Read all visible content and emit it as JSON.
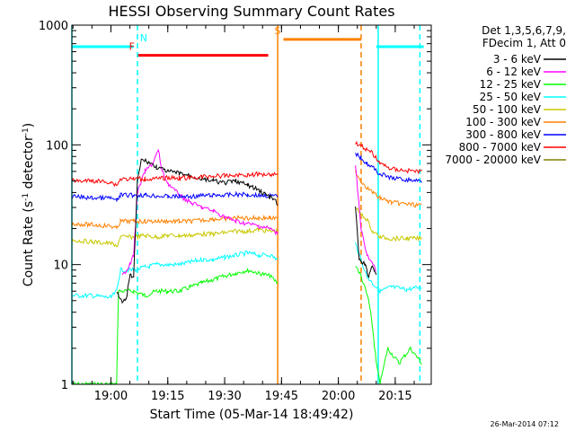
{
  "chart_data": {
    "type": "line",
    "title": "HESSI Observing Summary Count Rates",
    "xlabel": "Start Time (05-Mar-14 18:49:42)",
    "ylabel": "Count Rate (s",
    "ylabel_sup": "-1",
    "ylabel_tail": " detector",
    "ylabel_close": ")",
    "xlim": [
      "18:49:42",
      "20:24:30"
    ],
    "ylim": [
      1,
      1000
    ],
    "yscale": "log",
    "x_ticks": [
      "19:00",
      "19:15",
      "19:30",
      "19:45",
      "20:00",
      "20:15"
    ],
    "y_ticks": [
      "1",
      "10",
      "100",
      "1000"
    ],
    "legend_header": [
      "Det 1,3,5,6,7,9,",
      "FDecim 1, Att 0"
    ],
    "footer": "26-Mar-2014 07:12",
    "flags": [
      {
        "label": "N",
        "color": "#00ffff",
        "segments": [
          [
            "18:49:42",
            "19:06:00"
          ],
          [
            "20:10:00",
            "20:22:30"
          ]
        ],
        "level": 660
      },
      {
        "label": "F",
        "color": "#ff0000",
        "segments": [
          [
            "19:07:00",
            "19:41:30"
          ]
        ],
        "level": 560
      },
      {
        "label": "S",
        "color": "#ff8000",
        "segments": [
          [
            "19:45:30",
            "20:06:00"
          ]
        ],
        "level": 760
      }
    ],
    "vlines": [
      {
        "x": "18:49:42",
        "color": "#00ffff",
        "style": "solid"
      },
      {
        "x": "19:07:00",
        "color": "#00ffff",
        "style": "dashed"
      },
      {
        "x": "19:44:00",
        "color": "#ff8000",
        "style": "solid"
      },
      {
        "x": "20:06:00",
        "color": "#ff8000",
        "style": "dashed"
      },
      {
        "x": "20:10:30",
        "color": "#00ffff",
        "style": "solid"
      },
      {
        "x": "20:21:30",
        "color": "#00ffff",
        "style": "dashed"
      }
    ],
    "series": [
      {
        "name": "3 - 6 keV",
        "color": "#000000",
        "points": [
          [
            "19:01:30",
            6
          ],
          [
            "19:03:00",
            5
          ],
          [
            "19:04:00",
            5
          ],
          [
            "19:05:00",
            8
          ],
          [
            "19:06:00",
            8
          ],
          [
            "19:07:00",
            50
          ],
          [
            "19:08:00",
            75
          ],
          [
            "19:10:00",
            72
          ],
          [
            "19:12:00",
            65
          ],
          [
            "19:15:00",
            60
          ],
          [
            "19:18:00",
            58
          ],
          [
            "19:21:00",
            55
          ],
          [
            "19:24:00",
            52
          ],
          [
            "19:27:00",
            50
          ],
          [
            "19:30:00",
            48
          ],
          [
            "19:33:00",
            50
          ],
          [
            "19:36:00",
            46
          ],
          [
            "19:39:00",
            42
          ],
          [
            "19:41:00",
            38
          ],
          [
            "19:43:00",
            35
          ],
          [
            "19:44:00",
            32
          ],
          null,
          [
            "20:04:30",
            30
          ],
          [
            "20:05:30",
            11
          ],
          [
            "20:07:00",
            10
          ],
          [
            "20:08:00",
            8
          ],
          [
            "20:09:00",
            10
          ],
          [
            "20:10:00",
            8
          ]
        ]
      },
      {
        "name": "6 - 12 keV",
        "color": "#ff00ff",
        "points": [
          [
            "19:03:00",
            8
          ],
          [
            "19:04:00",
            9
          ],
          [
            "19:05:00",
            10
          ],
          [
            "19:06:00",
            12
          ],
          [
            "19:07:00",
            40
          ],
          [
            "19:09:00",
            60
          ],
          [
            "19:11:00",
            70
          ],
          [
            "19:12:30",
            90
          ],
          [
            "19:13:30",
            60
          ],
          [
            "19:15:00",
            48
          ],
          [
            "19:18:00",
            38
          ],
          [
            "19:21:00",
            33
          ],
          [
            "19:24:00",
            30
          ],
          [
            "19:27:00",
            28
          ],
          [
            "19:30:00",
            25
          ],
          [
            "19:33:00",
            23
          ],
          [
            "19:36:00",
            22
          ],
          [
            "19:39:00",
            21
          ],
          [
            "19:42:00",
            20
          ],
          [
            "19:44:00",
            18
          ],
          null,
          [
            "20:04:30",
            70
          ],
          [
            "20:06:00",
            20
          ],
          [
            "20:07:30",
            12
          ],
          [
            "20:09:00",
            10
          ],
          [
            "20:10:00",
            9
          ]
        ]
      },
      {
        "name": "12 - 25 keV",
        "color": "#00ff00",
        "points": [
          [
            "18:49:42",
            1
          ],
          [
            "19:00:00",
            1
          ],
          [
            "19:01:30",
            1
          ],
          [
            "19:02:00",
            6
          ],
          [
            "19:06:00",
            6
          ],
          [
            "19:09:00",
            5.5
          ],
          [
            "19:12:00",
            6
          ],
          [
            "19:15:00",
            6
          ],
          [
            "19:18:00",
            6
          ],
          [
            "19:21:00",
            6.5
          ],
          [
            "19:24:00",
            7
          ],
          [
            "19:27:00",
            7.5
          ],
          [
            "19:30:00",
            8
          ],
          [
            "19:33:00",
            8.5
          ],
          [
            "19:36:00",
            9
          ],
          [
            "19:39:00",
            8.5
          ],
          [
            "19:42:00",
            8
          ],
          [
            "19:44:00",
            7
          ],
          null,
          [
            "20:04:30",
            10
          ],
          [
            "20:06:00",
            8
          ],
          [
            "20:08:00",
            5
          ],
          [
            "20:09:00",
            3
          ],
          [
            "20:10:00",
            1.5
          ],
          [
            "20:11:00",
            1
          ],
          [
            "20:13:00",
            2
          ],
          [
            "20:16:00",
            1.5
          ],
          [
            "20:19:00",
            2
          ],
          [
            "20:22:00",
            1.5
          ]
        ]
      },
      {
        "name": "25 - 50 keV",
        "color": "#00ffff",
        "points": [
          [
            "18:49:42",
            5.5
          ],
          [
            "18:55:00",
            5.5
          ],
          [
            "19:00:00",
            5.3
          ],
          [
            "19:01:30",
            6
          ],
          [
            "19:02:30",
            9
          ],
          [
            "19:06:00",
            9
          ],
          [
            "19:09:00",
            9.5
          ],
          [
            "19:12:00",
            10
          ],
          [
            "19:15:00",
            10
          ],
          [
            "19:18:00",
            10
          ],
          [
            "19:21:00",
            10.5
          ],
          [
            "19:24:00",
            11
          ],
          [
            "19:27:00",
            11
          ],
          [
            "19:30:00",
            11.5
          ],
          [
            "19:33:00",
            12
          ],
          [
            "19:36:00",
            12.5
          ],
          [
            "19:39:00",
            12
          ],
          [
            "19:42:00",
            12
          ],
          [
            "19:44:00",
            11
          ],
          null,
          [
            "20:04:30",
            15
          ],
          [
            "20:06:00",
            11
          ],
          [
            "20:07:30",
            8
          ],
          [
            "20:09:00",
            7
          ],
          [
            "20:11:00",
            6
          ],
          [
            "20:14:00",
            6.5
          ],
          [
            "20:18:00",
            6.2
          ],
          [
            "20:22:00",
            6.5
          ]
        ]
      },
      {
        "name": "50 - 100 keV",
        "color": "#c8c800",
        "points": [
          [
            "18:49:42",
            16
          ],
          [
            "18:55:00",
            15.5
          ],
          [
            "19:00:00",
            15
          ],
          [
            "19:01:30",
            14
          ],
          [
            "19:02:30",
            17
          ],
          [
            "19:06:00",
            17
          ],
          [
            "19:09:00",
            17.5
          ],
          [
            "19:12:00",
            17
          ],
          [
            "19:15:00",
            17.5
          ],
          [
            "19:18:00",
            17.5
          ],
          [
            "19:21:00",
            17.5
          ],
          [
            "19:24:00",
            18
          ],
          [
            "19:27:00",
            18
          ],
          [
            "19:30:00",
            18.5
          ],
          [
            "19:33:00",
            19
          ],
          [
            "19:36:00",
            19
          ],
          [
            "19:39:00",
            19.5
          ],
          [
            "19:42:00",
            19
          ],
          [
            "19:44:00",
            19
          ],
          null,
          [
            "20:04:30",
            30
          ],
          [
            "20:06:00",
            26
          ],
          [
            "20:07:30",
            24
          ],
          [
            "20:09:00",
            19
          ],
          [
            "20:11:00",
            17
          ],
          [
            "20:14:00",
            16.5
          ],
          [
            "20:18:00",
            16.5
          ],
          [
            "20:22:00",
            16.5
          ]
        ]
      },
      {
        "name": "100 - 300 keV",
        "color": "#ff8000",
        "points": [
          [
            "18:49:42",
            22
          ],
          [
            "18:55:00",
            21.5
          ],
          [
            "19:00:00",
            21
          ],
          [
            "19:01:30",
            20
          ],
          [
            "19:02:30",
            23
          ],
          [
            "19:06:00",
            23
          ],
          [
            "19:09:00",
            23
          ],
          [
            "19:12:00",
            23
          ],
          [
            "19:15:00",
            23
          ],
          [
            "19:18:00",
            23
          ],
          [
            "19:21:00",
            23
          ],
          [
            "19:24:00",
            23.5
          ],
          [
            "19:27:00",
            24
          ],
          [
            "19:30:00",
            24
          ],
          [
            "19:33:00",
            24.5
          ],
          [
            "19:36:00",
            24.5
          ],
          [
            "19:39:00",
            24.5
          ],
          [
            "19:42:00",
            24.5
          ],
          [
            "19:44:00",
            24
          ],
          null,
          [
            "20:04:30",
            60
          ],
          [
            "20:06:00",
            50
          ],
          [
            "20:07:30",
            44
          ],
          [
            "20:09:00",
            40
          ],
          [
            "20:11:00",
            36
          ],
          [
            "20:14:00",
            33
          ],
          [
            "20:18:00",
            32
          ],
          [
            "20:22:00",
            31
          ]
        ]
      },
      {
        "name": "300 - 800 keV",
        "color": "#0000ff",
        "points": [
          [
            "18:49:42",
            37
          ],
          [
            "18:55:00",
            36
          ],
          [
            "19:00:00",
            36
          ],
          [
            "19:01:30",
            34
          ],
          [
            "19:02:30",
            38
          ],
          [
            "19:06:00",
            38
          ],
          [
            "19:09:00",
            38
          ],
          [
            "19:12:00",
            37.5
          ],
          [
            "19:15:00",
            37
          ],
          [
            "19:18:00",
            37
          ],
          [
            "19:21:00",
            37
          ],
          [
            "19:24:00",
            37.5
          ],
          [
            "19:27:00",
            38
          ],
          [
            "19:30:00",
            38
          ],
          [
            "19:33:00",
            38.5
          ],
          [
            "19:36:00",
            38.5
          ],
          [
            "19:39:00",
            38
          ],
          [
            "19:42:00",
            37.5
          ],
          [
            "19:44:00",
            37
          ],
          null,
          [
            "20:04:30",
            85
          ],
          [
            "20:06:00",
            78
          ],
          [
            "20:07:30",
            70
          ],
          [
            "20:09:00",
            65
          ],
          [
            "20:11:00",
            57
          ],
          [
            "20:14:00",
            53
          ],
          [
            "20:18:00",
            51
          ],
          [
            "20:22:00",
            50
          ]
        ]
      },
      {
        "name": "800 - 7000 keV",
        "color": "#ff0000",
        "points": [
          [
            "18:49:42",
            50
          ],
          [
            "18:55:00",
            50
          ],
          [
            "19:00:00",
            49
          ],
          [
            "19:01:30",
            46
          ],
          [
            "19:02:30",
            52
          ],
          [
            "19:06:00",
            52
          ],
          [
            "19:09:00",
            52
          ],
          [
            "19:12:00",
            52
          ],
          [
            "19:15:00",
            53
          ],
          [
            "19:18:00",
            53
          ],
          [
            "19:21:00",
            53
          ],
          [
            "19:24:00",
            54
          ],
          [
            "19:27:00",
            55
          ],
          [
            "19:30:00",
            55
          ],
          [
            "19:33:00",
            56
          ],
          [
            "19:36:00",
            56
          ],
          [
            "19:39:00",
            57
          ],
          [
            "19:42:00",
            57
          ],
          [
            "19:44:00",
            57
          ],
          null,
          [
            "20:04:30",
            105
          ],
          [
            "20:06:00",
            98
          ],
          [
            "20:07:30",
            92
          ],
          [
            "20:09:00",
            85
          ],
          [
            "20:11:00",
            70
          ],
          [
            "20:14:00",
            63
          ],
          [
            "20:18:00",
            61
          ],
          [
            "20:22:00",
            60
          ]
        ]
      },
      {
        "name": "7000 - 20000 keV",
        "color": "#808000",
        "points": []
      }
    ]
  }
}
